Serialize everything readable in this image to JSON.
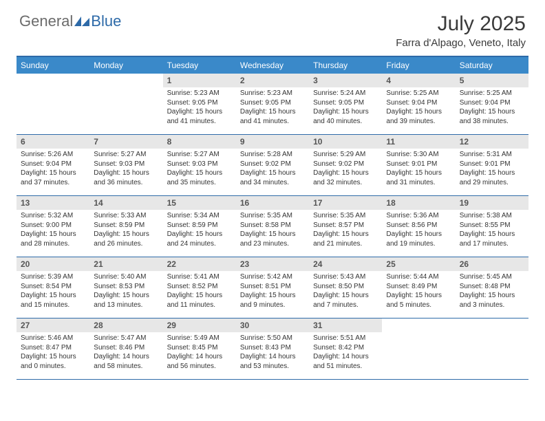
{
  "logo": {
    "part1": "General",
    "part2": "Blue"
  },
  "title": "July 2025",
  "location": "Farra d'Alpago, Veneto, Italy",
  "weekdays": [
    "Sunday",
    "Monday",
    "Tuesday",
    "Wednesday",
    "Thursday",
    "Friday",
    "Saturday"
  ],
  "colors": {
    "accent": "#3a89c9",
    "border": "#2d6aa8",
    "dayNumBg": "#e7e7e7",
    "logoGray": "#6b6b6b"
  },
  "weeks": [
    [
      {
        "empty": true
      },
      {
        "empty": true
      },
      {
        "num": "1",
        "sunrise": "Sunrise: 5:23 AM",
        "sunset": "Sunset: 9:05 PM",
        "daylight": "Daylight: 15 hours and 41 minutes."
      },
      {
        "num": "2",
        "sunrise": "Sunrise: 5:23 AM",
        "sunset": "Sunset: 9:05 PM",
        "daylight": "Daylight: 15 hours and 41 minutes."
      },
      {
        "num": "3",
        "sunrise": "Sunrise: 5:24 AM",
        "sunset": "Sunset: 9:05 PM",
        "daylight": "Daylight: 15 hours and 40 minutes."
      },
      {
        "num": "4",
        "sunrise": "Sunrise: 5:25 AM",
        "sunset": "Sunset: 9:04 PM",
        "daylight": "Daylight: 15 hours and 39 minutes."
      },
      {
        "num": "5",
        "sunrise": "Sunrise: 5:25 AM",
        "sunset": "Sunset: 9:04 PM",
        "daylight": "Daylight: 15 hours and 38 minutes."
      }
    ],
    [
      {
        "num": "6",
        "sunrise": "Sunrise: 5:26 AM",
        "sunset": "Sunset: 9:04 PM",
        "daylight": "Daylight: 15 hours and 37 minutes."
      },
      {
        "num": "7",
        "sunrise": "Sunrise: 5:27 AM",
        "sunset": "Sunset: 9:03 PM",
        "daylight": "Daylight: 15 hours and 36 minutes."
      },
      {
        "num": "8",
        "sunrise": "Sunrise: 5:27 AM",
        "sunset": "Sunset: 9:03 PM",
        "daylight": "Daylight: 15 hours and 35 minutes."
      },
      {
        "num": "9",
        "sunrise": "Sunrise: 5:28 AM",
        "sunset": "Sunset: 9:02 PM",
        "daylight": "Daylight: 15 hours and 34 minutes."
      },
      {
        "num": "10",
        "sunrise": "Sunrise: 5:29 AM",
        "sunset": "Sunset: 9:02 PM",
        "daylight": "Daylight: 15 hours and 32 minutes."
      },
      {
        "num": "11",
        "sunrise": "Sunrise: 5:30 AM",
        "sunset": "Sunset: 9:01 PM",
        "daylight": "Daylight: 15 hours and 31 minutes."
      },
      {
        "num": "12",
        "sunrise": "Sunrise: 5:31 AM",
        "sunset": "Sunset: 9:01 PM",
        "daylight": "Daylight: 15 hours and 29 minutes."
      }
    ],
    [
      {
        "num": "13",
        "sunrise": "Sunrise: 5:32 AM",
        "sunset": "Sunset: 9:00 PM",
        "daylight": "Daylight: 15 hours and 28 minutes."
      },
      {
        "num": "14",
        "sunrise": "Sunrise: 5:33 AM",
        "sunset": "Sunset: 8:59 PM",
        "daylight": "Daylight: 15 hours and 26 minutes."
      },
      {
        "num": "15",
        "sunrise": "Sunrise: 5:34 AM",
        "sunset": "Sunset: 8:59 PM",
        "daylight": "Daylight: 15 hours and 24 minutes."
      },
      {
        "num": "16",
        "sunrise": "Sunrise: 5:35 AM",
        "sunset": "Sunset: 8:58 PM",
        "daylight": "Daylight: 15 hours and 23 minutes."
      },
      {
        "num": "17",
        "sunrise": "Sunrise: 5:35 AM",
        "sunset": "Sunset: 8:57 PM",
        "daylight": "Daylight: 15 hours and 21 minutes."
      },
      {
        "num": "18",
        "sunrise": "Sunrise: 5:36 AM",
        "sunset": "Sunset: 8:56 PM",
        "daylight": "Daylight: 15 hours and 19 minutes."
      },
      {
        "num": "19",
        "sunrise": "Sunrise: 5:38 AM",
        "sunset": "Sunset: 8:55 PM",
        "daylight": "Daylight: 15 hours and 17 minutes."
      }
    ],
    [
      {
        "num": "20",
        "sunrise": "Sunrise: 5:39 AM",
        "sunset": "Sunset: 8:54 PM",
        "daylight": "Daylight: 15 hours and 15 minutes."
      },
      {
        "num": "21",
        "sunrise": "Sunrise: 5:40 AM",
        "sunset": "Sunset: 8:53 PM",
        "daylight": "Daylight: 15 hours and 13 minutes."
      },
      {
        "num": "22",
        "sunrise": "Sunrise: 5:41 AM",
        "sunset": "Sunset: 8:52 PM",
        "daylight": "Daylight: 15 hours and 11 minutes."
      },
      {
        "num": "23",
        "sunrise": "Sunrise: 5:42 AM",
        "sunset": "Sunset: 8:51 PM",
        "daylight": "Daylight: 15 hours and 9 minutes."
      },
      {
        "num": "24",
        "sunrise": "Sunrise: 5:43 AM",
        "sunset": "Sunset: 8:50 PM",
        "daylight": "Daylight: 15 hours and 7 minutes."
      },
      {
        "num": "25",
        "sunrise": "Sunrise: 5:44 AM",
        "sunset": "Sunset: 8:49 PM",
        "daylight": "Daylight: 15 hours and 5 minutes."
      },
      {
        "num": "26",
        "sunrise": "Sunrise: 5:45 AM",
        "sunset": "Sunset: 8:48 PM",
        "daylight": "Daylight: 15 hours and 3 minutes."
      }
    ],
    [
      {
        "num": "27",
        "sunrise": "Sunrise: 5:46 AM",
        "sunset": "Sunset: 8:47 PM",
        "daylight": "Daylight: 15 hours and 0 minutes."
      },
      {
        "num": "28",
        "sunrise": "Sunrise: 5:47 AM",
        "sunset": "Sunset: 8:46 PM",
        "daylight": "Daylight: 14 hours and 58 minutes."
      },
      {
        "num": "29",
        "sunrise": "Sunrise: 5:49 AM",
        "sunset": "Sunset: 8:45 PM",
        "daylight": "Daylight: 14 hours and 56 minutes."
      },
      {
        "num": "30",
        "sunrise": "Sunrise: 5:50 AM",
        "sunset": "Sunset: 8:43 PM",
        "daylight": "Daylight: 14 hours and 53 minutes."
      },
      {
        "num": "31",
        "sunrise": "Sunrise: 5:51 AM",
        "sunset": "Sunset: 8:42 PM",
        "daylight": "Daylight: 14 hours and 51 minutes."
      },
      {
        "empty": true
      },
      {
        "empty": true
      }
    ]
  ]
}
